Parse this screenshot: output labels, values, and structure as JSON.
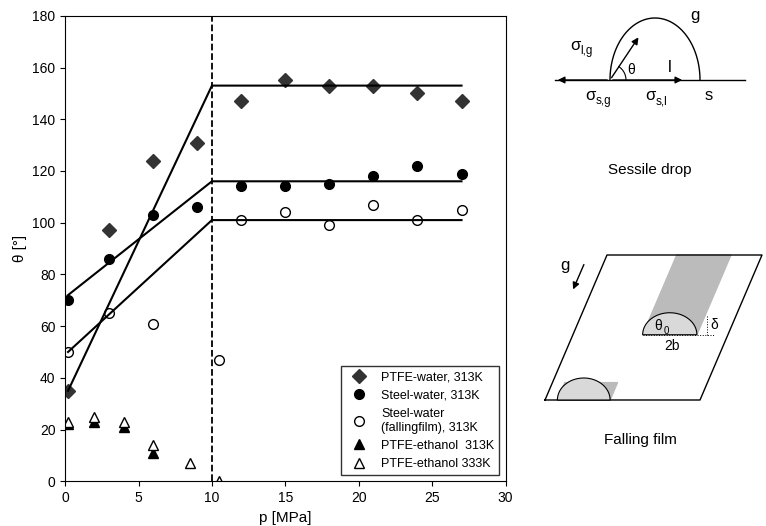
{
  "chart_data": {
    "type": "scatter",
    "x_label": "p [MPa]",
    "y_label": "θ [°]",
    "xlim": [
      0,
      30
    ],
    "xticks": [
      0,
      5,
      10,
      15,
      20,
      25,
      30
    ],
    "ylim": [
      0,
      180
    ],
    "yticks": [
      0,
      20,
      40,
      60,
      80,
      100,
      120,
      140,
      160,
      180
    ],
    "grid": false,
    "legend": "lower right",
    "series": [
      {
        "name": "PTFE-water, 313K",
        "type": "scatter",
        "marker": "diamond",
        "color": "#333333",
        "x": [
          0.2,
          3,
          6,
          9,
          12,
          15,
          18,
          21,
          24,
          27
        ],
        "values": [
          35,
          97,
          124,
          131,
          147,
          155,
          153,
          153,
          150,
          147
        ]
      },
      {
        "name": "Steel-water, 313K",
        "type": "scatter",
        "marker": "circle",
        "color": "#000000",
        "x": [
          0.2,
          3,
          6,
          9,
          12,
          15,
          18,
          21,
          24,
          27
        ],
        "values": [
          70,
          86,
          103,
          106,
          114,
          114,
          115,
          118,
          122,
          119
        ]
      },
      {
        "name": "Steel-water\n(fallingfilm), 313K",
        "type": "scatter",
        "marker": "open_circle",
        "color": "#000000",
        "x": [
          0.2,
          3,
          6,
          10.5,
          12,
          15,
          18,
          21,
          24,
          27
        ],
        "values": [
          50,
          65,
          61,
          47,
          101,
          104,
          99,
          107,
          101,
          105
        ]
      },
      {
        "name": "PTFE-ethanol  313K",
        "type": "scatter",
        "marker": "triangle",
        "color": "#000000",
        "x": [
          0.2,
          2,
          4,
          6
        ],
        "values": [
          22,
          23,
          21,
          11
        ]
      },
      {
        "name": "PTFE-ethanol 333K",
        "type": "scatter",
        "marker": "open_triangle",
        "color": "#000000",
        "x": [
          0.2,
          2,
          4,
          6,
          8.5,
          10.5
        ],
        "values": [
          23,
          25,
          23,
          14,
          7,
          0
        ]
      },
      {
        "type": "line",
        "line_style": "solid",
        "color": "#000000",
        "x": [
          0.2,
          10,
          27
        ],
        "values": [
          35,
          153,
          153
        ]
      },
      {
        "type": "line",
        "line_style": "solid",
        "color": "#000000",
        "x": [
          0.2,
          10,
          27
        ],
        "values": [
          72,
          116,
          116
        ]
      },
      {
        "type": "line",
        "line_style": "solid",
        "color": "#000000",
        "x": [
          0.2,
          10,
          27
        ],
        "values": [
          50,
          101,
          101
        ]
      }
    ],
    "reference_lines": [
      {
        "x": 10,
        "line_style": "dashed",
        "color": "#000000"
      }
    ]
  },
  "diagrams": {
    "sessile_drop": {
      "caption": "Sessile drop",
      "labels": {
        "sigma_lg": {
          "text": "σ",
          "subscript": "l,g"
        },
        "gas": {
          "text": "g"
        },
        "theta": {
          "text": "θ"
        },
        "liquid": {
          "text": "l"
        },
        "sigma_sg": {
          "text": "σ",
          "subscript": "s,g"
        },
        "sigma_sl": {
          "text": "σ",
          "subscript": "s,l"
        },
        "solid": {
          "text": "s"
        }
      }
    },
    "falling_film": {
      "caption": "Falling film",
      "labels": {
        "gravity": {
          "text": "g"
        },
        "theta0": {
          "text": "θ",
          "subscript": "0"
        },
        "delta": {
          "text": "δ"
        },
        "width": {
          "text": "2b"
        }
      }
    }
  }
}
